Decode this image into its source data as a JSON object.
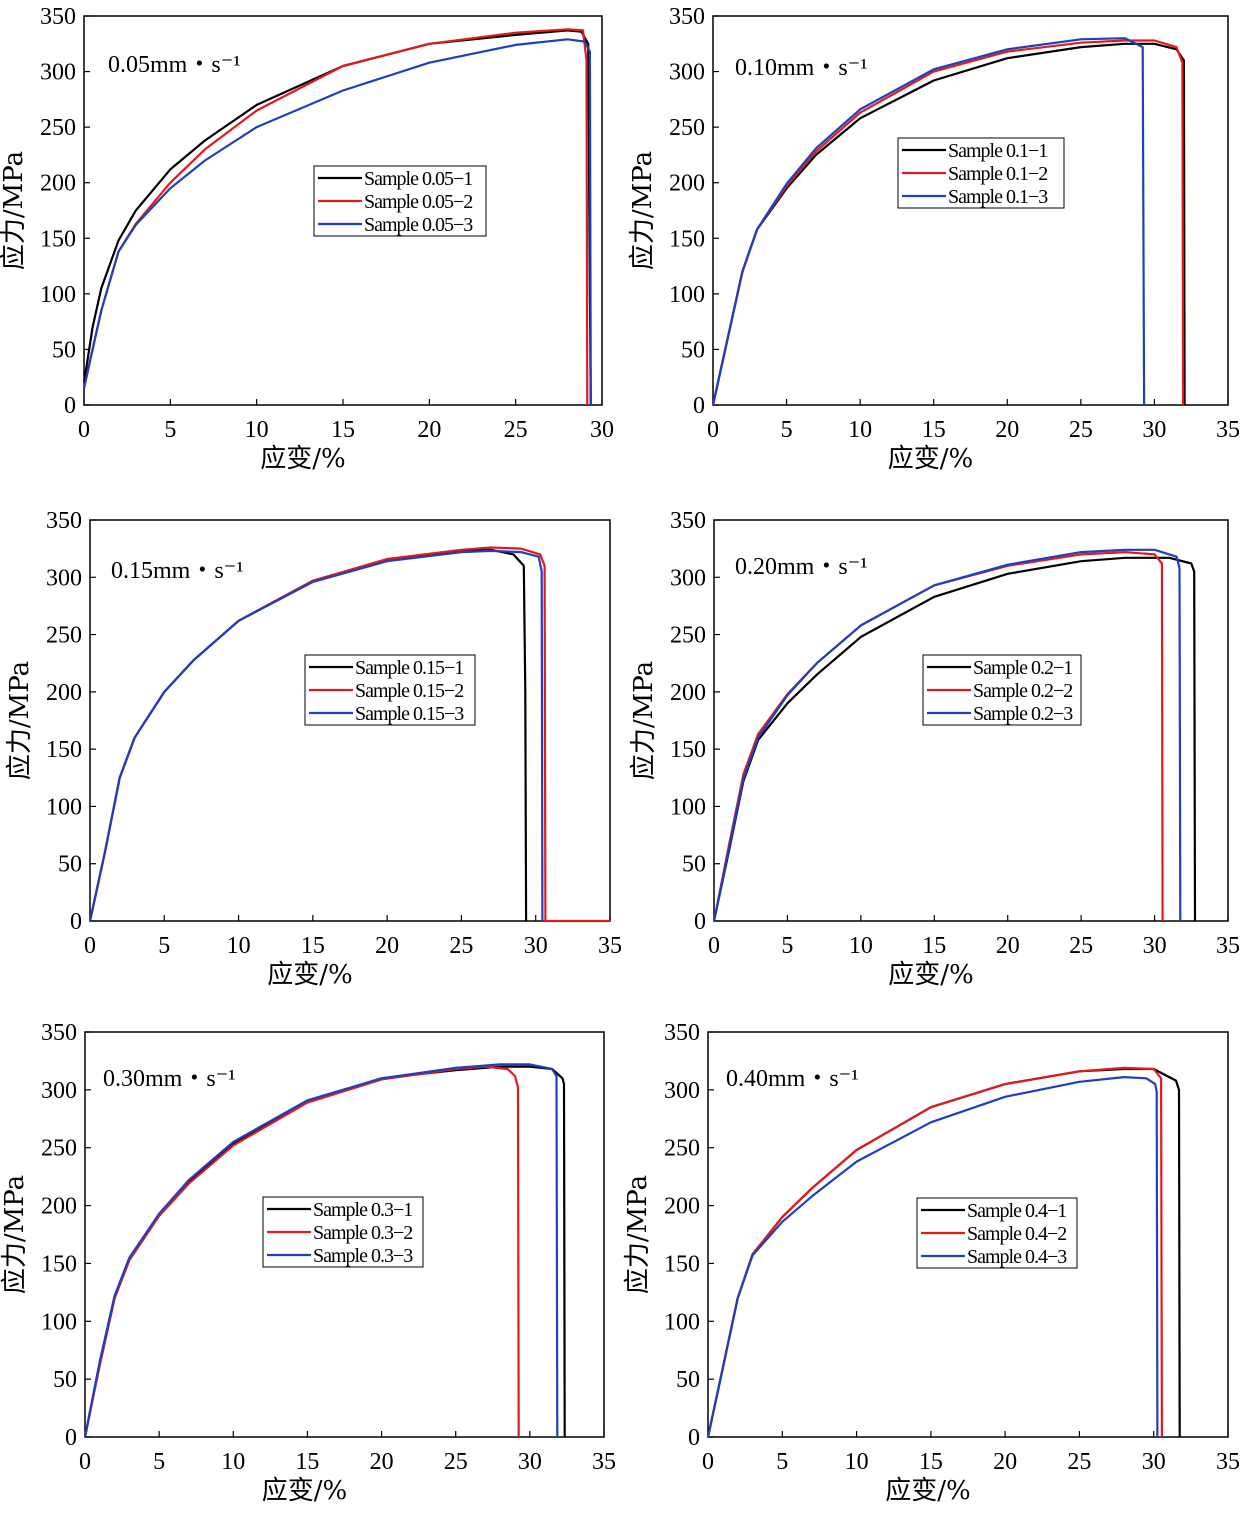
{
  "chart_data": [
    {
      "type": "line",
      "rate_label": "0.05mm・s⁻¹",
      "xlabel": "应变/%",
      "ylabel": "应力/MPa",
      "xlim": [
        0,
        30
      ],
      "ylim": [
        0,
        350
      ],
      "xticks": [
        "0",
        "5",
        "10",
        "15",
        "20",
        "25",
        "30"
      ],
      "yticks": [
        "0",
        "50",
        "100",
        "150",
        "200",
        "250",
        "300",
        "350"
      ],
      "grid": false,
      "legend_position": "center",
      "series": [
        {
          "name": "Sample 0.05−1",
          "color": "#000000",
          "x": [
            0,
            0.5,
            1,
            2,
            3,
            5,
            7,
            10,
            15,
            20,
            25,
            28,
            28.8,
            29.2,
            29.3,
            29.35
          ],
          "y": [
            20,
            70,
            105,
            148,
            175,
            212,
            238,
            270,
            305,
            325,
            333,
            337,
            336,
            325,
            100,
            0
          ]
        },
        {
          "name": "Sample 0.05−2",
          "color": "#e31a1c",
          "x": [
            0,
            0.5,
            1,
            2,
            3,
            5,
            7,
            10,
            15,
            20,
            25,
            28,
            28.9,
            29.1,
            29.15
          ],
          "y": [
            15,
            50,
            85,
            138,
            163,
            200,
            230,
            265,
            305,
            325,
            335,
            338,
            337,
            310,
            0
          ]
        },
        {
          "name": "Sample 0.05−3",
          "color": "#1f3fbf",
          "x": [
            0,
            0.5,
            1,
            2,
            3,
            5,
            7,
            10,
            15,
            20,
            25,
            28,
            29,
            29.3,
            29.35
          ],
          "y": [
            15,
            50,
            85,
            138,
            162,
            195,
            220,
            250,
            283,
            308,
            324,
            329,
            327,
            318,
            0
          ]
        }
      ]
    },
    {
      "type": "line",
      "rate_label": "0.10mm・s⁻¹",
      "xlabel": "应变/%",
      "ylabel": "应力/MPa",
      "xlim": [
        0,
        35
      ],
      "ylim": [
        0,
        350
      ],
      "xticks": [
        "0",
        "5",
        "10",
        "15",
        "20",
        "25",
        "30",
        "35"
      ],
      "yticks": [
        "0",
        "50",
        "100",
        "150",
        "200",
        "250",
        "300",
        "350"
      ],
      "grid": false,
      "legend_position": "center-right",
      "series": [
        {
          "name": "Sample 0.1−1",
          "color": "#000000",
          "x": [
            0,
            1,
            2,
            3,
            5,
            7,
            10,
            15,
            20,
            25,
            28,
            30,
            31.5,
            32.0,
            32.05
          ],
          "y": [
            0,
            60,
            120,
            158,
            195,
            225,
            258,
            292,
            312,
            322,
            325,
            325,
            320,
            310,
            0
          ]
        },
        {
          "name": "Sample 0.1−2",
          "color": "#e31a1c",
          "x": [
            0,
            1,
            2,
            3,
            5,
            7,
            10,
            15,
            20,
            25,
            28,
            30,
            31.5,
            31.9,
            31.95
          ],
          "y": [
            0,
            60,
            120,
            158,
            197,
            228,
            263,
            300,
            318,
            326,
            328,
            328,
            322,
            308,
            0
          ]
        },
        {
          "name": "Sample 0.1−3",
          "color": "#1f3fbf",
          "x": [
            0,
            1,
            2,
            3,
            5,
            7,
            10,
            15,
            20,
            25,
            28,
            29.2,
            29.3
          ],
          "y": [
            0,
            60,
            120,
            158,
            199,
            231,
            266,
            302,
            320,
            329,
            330,
            322,
            0
          ]
        }
      ]
    },
    {
      "type": "line",
      "rate_label": "0.15mm・s⁻¹",
      "xlabel": "应变/%",
      "ylabel": "应力/MPa",
      "xlim": [
        0,
        35
      ],
      "ylim": [
        0,
        350
      ],
      "xticks": [
        "0",
        "5",
        "10",
        "15",
        "20",
        "25",
        "30",
        "35"
      ],
      "yticks": [
        "0",
        "50",
        "100",
        "150",
        "200",
        "250",
        "300",
        "350"
      ],
      "grid": false,
      "legend_position": "center-right",
      "series": [
        {
          "name": "Sample 0.15−1",
          "color": "#000000",
          "x": [
            0,
            1,
            2,
            3,
            5,
            7,
            10,
            15,
            20,
            25,
            27,
            28.5,
            29.2,
            29.3,
            29.35
          ],
          "y": [
            0,
            60,
            125,
            160,
            200,
            228,
            262,
            297,
            315,
            323,
            324,
            320,
            310,
            200,
            0
          ]
        },
        {
          "name": "Sample 0.15−2",
          "color": "#e31a1c",
          "x": [
            0,
            1,
            2,
            3,
            5,
            7,
            10,
            15,
            20,
            25,
            27,
            29,
            30.3,
            30.6,
            30.65,
            35
          ],
          "y": [
            0,
            60,
            125,
            160,
            200,
            228,
            262,
            297,
            316,
            324,
            326,
            325,
            320,
            310,
            0,
            0
          ]
        },
        {
          "name": "Sample 0.15−3",
          "color": "#1f3fbf",
          "x": [
            0,
            1,
            2,
            3,
            5,
            7,
            10,
            15,
            20,
            25,
            27,
            29,
            30.2,
            30.4,
            30.45
          ],
          "y": [
            0,
            60,
            125,
            160,
            200,
            228,
            262,
            296,
            314,
            322,
            323,
            322,
            318,
            305,
            0
          ]
        }
      ]
    },
    {
      "type": "line",
      "rate_label": "0.20mm・s⁻¹",
      "xlabel": "应变/%",
      "ylabel": "应力/MPa",
      "xlim": [
        0,
        35
      ],
      "ylim": [
        0,
        350
      ],
      "xticks": [
        "0",
        "5",
        "10",
        "15",
        "20",
        "25",
        "30",
        "35"
      ],
      "yticks": [
        "0",
        "50",
        "100",
        "150",
        "200",
        "250",
        "300",
        "350"
      ],
      "grid": false,
      "legend_position": "center-right",
      "series": [
        {
          "name": "Sample 0.2−1",
          "color": "#000000",
          "x": [
            0,
            1,
            2,
            3,
            5,
            7,
            10,
            15,
            20,
            25,
            28,
            31,
            32.5,
            32.7,
            32.75
          ],
          "y": [
            0,
            60,
            122,
            158,
            190,
            215,
            248,
            283,
            303,
            314,
            317,
            317,
            312,
            305,
            0
          ]
        },
        {
          "name": "Sample 0.2−2",
          "color": "#e31a1c",
          "x": [
            0,
            1,
            2,
            3,
            5,
            7,
            10,
            15,
            20,
            25,
            28,
            30,
            30.5,
            30.55
          ],
          "y": [
            0,
            65,
            128,
            163,
            198,
            225,
            258,
            293,
            310,
            320,
            322,
            320,
            312,
            0
          ]
        },
        {
          "name": "Sample 0.2−3",
          "color": "#1f3fbf",
          "x": [
            0,
            1,
            2,
            3,
            5,
            7,
            10,
            15,
            20,
            25,
            28,
            30,
            31.5,
            31.7,
            31.75
          ],
          "y": [
            0,
            62,
            124,
            160,
            197,
            225,
            258,
            293,
            311,
            322,
            324,
            324,
            318,
            308,
            0
          ]
        }
      ]
    },
    {
      "type": "line",
      "rate_label": "0.30mm・s⁻¹",
      "xlabel": "应变/%",
      "ylabel": "应力/MPa",
      "xlim": [
        0,
        35
      ],
      "ylim": [
        0,
        350
      ],
      "xticks": [
        "0",
        "5",
        "10",
        "15",
        "20",
        "25",
        "30",
        "35"
      ],
      "yticks": [
        "0",
        "50",
        "100",
        "150",
        "200",
        "250",
        "300",
        "350"
      ],
      "grid": false,
      "legend_position": "center-left",
      "series": [
        {
          "name": "Sample 0.3−1",
          "color": "#000000",
          "x": [
            0,
            1,
            2,
            3,
            5,
            7,
            10,
            15,
            20,
            25,
            28,
            30,
            31.5,
            32.2,
            32.3,
            32.35
          ],
          "y": [
            0,
            65,
            122,
            155,
            192,
            220,
            253,
            290,
            310,
            317,
            320,
            320,
            318,
            310,
            305,
            0
          ]
        },
        {
          "name": "Sample 0.3−2",
          "color": "#e31a1c",
          "x": [
            0,
            1,
            2,
            3,
            5,
            7,
            10,
            15,
            20,
            25,
            27,
            28.5,
            29.0,
            29.2,
            29.25
          ],
          "y": [
            0,
            62,
            120,
            153,
            191,
            219,
            252,
            289,
            309,
            318,
            320,
            318,
            312,
            302,
            0
          ]
        },
        {
          "name": "Sample 0.3−3",
          "color": "#1f3fbf",
          "x": [
            0,
            1,
            2,
            3,
            5,
            7,
            10,
            15,
            20,
            25,
            28,
            30,
            31.5,
            31.8,
            31.85
          ],
          "y": [
            0,
            65,
            122,
            155,
            193,
            222,
            255,
            291,
            310,
            319,
            322,
            322,
            318,
            312,
            0
          ]
        }
      ]
    },
    {
      "type": "line",
      "rate_label": "0.40mm・s⁻¹",
      "xlabel": "应变/%",
      "ylabel": "应力/MPa",
      "xlim": [
        0,
        35
      ],
      "ylim": [
        0,
        350
      ],
      "xticks": [
        "0",
        "5",
        "10",
        "15",
        "20",
        "25",
        "30",
        "35"
      ],
      "yticks": [
        "0",
        "50",
        "100",
        "150",
        "200",
        "250",
        "300",
        "350"
      ],
      "grid": false,
      "legend_position": "center-right",
      "series": [
        {
          "name": "Sample 0.4−1",
          "color": "#000000",
          "x": [
            0,
            1,
            2,
            3,
            5,
            7,
            10,
            15,
            20,
            25,
            28,
            30,
            31.5,
            31.7,
            31.75
          ],
          "y": [
            0,
            60,
            120,
            158,
            190,
            215,
            248,
            285,
            305,
            316,
            318,
            318,
            308,
            300,
            0
          ]
        },
        {
          "name": "Sample 0.4−2",
          "color": "#e31a1c",
          "x": [
            0,
            1,
            2,
            3,
            5,
            7,
            10,
            15,
            20,
            25,
            28,
            30,
            30.5,
            30.55
          ],
          "y": [
            0,
            60,
            120,
            158,
            190,
            215,
            248,
            285,
            305,
            316,
            319,
            318,
            310,
            0
          ]
        },
        {
          "name": "Sample 0.4−3",
          "color": "#1f3fbf",
          "x": [
            0,
            1,
            2,
            3,
            5,
            7,
            10,
            15,
            20,
            25,
            28,
            29.5,
            30.1,
            30.2,
            30.25
          ],
          "y": [
            0,
            60,
            120,
            157,
            186,
            208,
            238,
            272,
            294,
            307,
            311,
            310,
            305,
            298,
            0
          ]
        }
      ]
    }
  ]
}
